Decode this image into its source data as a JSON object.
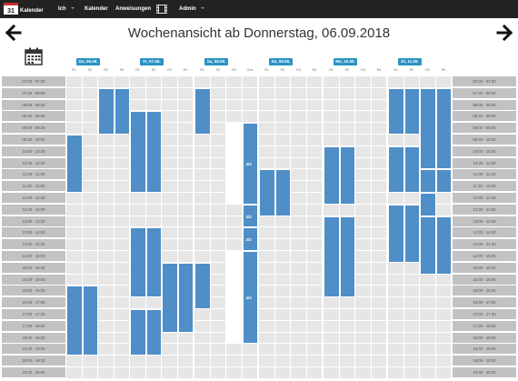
{
  "navbar": {
    "brand_day": "31",
    "brand_label": "Kalender",
    "items": [
      {
        "label": "Ich",
        "dropdown": true
      },
      {
        "label": "Kalender",
        "dropdown": false
      },
      {
        "label": "Anweisungen",
        "dropdown": false
      },
      {
        "label": "",
        "icon": "film-icon",
        "dropdown": false
      },
      {
        "label": "Admin",
        "dropdown": true
      }
    ]
  },
  "page": {
    "title": "Wochenansicht ab Donnerstag, 06.09.2018",
    "prev_icon": "arrow-left-icon",
    "next_icon": "arrow-right-icon",
    "calendar_icon": "calendar-icon"
  },
  "times": [
    "07:00 - 07:30",
    "07:30 - 08:00",
    "08:00 - 08:30",
    "08:30 - 09:00",
    "09:00 - 09:30",
    "09:30 - 10:00",
    "10:00 - 10:30",
    "10:30 - 11:00",
    "11:00 - 11:30",
    "11:30 - 12:00",
    "12:00 - 12:30",
    "12:30 - 13:00",
    "13:00 - 13:30",
    "13:30 - 14:00",
    "14:00 - 14:30",
    "14:30 - 15:00",
    "15:00 - 15:30",
    "15:30 - 16:00",
    "16:00 - 16:30",
    "16:30 - 17:00",
    "17:00 - 17:30",
    "17:30 - 18:00",
    "18:00 - 18:30",
    "18:30 - 19:00",
    "19:00 - 19:30",
    "19:30 - 20:00"
  ],
  "days": [
    {
      "label": "Do, 06.09.",
      "rooms": [
        "R1",
        "R2",
        "R3",
        "R4"
      ]
    },
    {
      "label": "Fr, 07.09.",
      "rooms": [
        "R1",
        "R2",
        "R3",
        "R4"
      ]
    },
    {
      "label": "Sa, 08.09.",
      "rooms": [
        "R1",
        "R2",
        "R3",
        "Ges"
      ]
    },
    {
      "label": "So, 09.09.",
      "rooms": [
        "R1",
        "R2",
        "R3",
        "R4"
      ]
    },
    {
      "label": "Mo, 10.09.",
      "rooms": [
        "R1",
        "R2",
        "R3",
        "R4"
      ]
    },
    {
      "label": "Di, 11.09.",
      "rooms": [
        "R1",
        "R2",
        "R3",
        "R4"
      ]
    }
  ],
  "bookings": [
    {
      "day": 0,
      "room": 2,
      "start": 1,
      "end": 5
    },
    {
      "day": 0,
      "room": 3,
      "start": 1,
      "end": 5
    },
    {
      "day": 0,
      "room": 0,
      "start": 5,
      "end": 10
    },
    {
      "day": 0,
      "room": 0,
      "start": 18,
      "end": 24
    },
    {
      "day": 0,
      "room": 1,
      "start": 18,
      "end": 24
    },
    {
      "day": 1,
      "room": 0,
      "start": 3,
      "end": 10
    },
    {
      "day": 1,
      "room": 1,
      "start": 3,
      "end": 10
    },
    {
      "day": 1,
      "room": 0,
      "start": 13,
      "end": 19
    },
    {
      "day": 1,
      "room": 1,
      "start": 13,
      "end": 19
    },
    {
      "day": 1,
      "room": 2,
      "start": 16,
      "end": 22
    },
    {
      "day": 1,
      "room": 3,
      "start": 16,
      "end": 22
    },
    {
      "day": 1,
      "room": 0,
      "start": 20,
      "end": 24
    },
    {
      "day": 1,
      "room": 1,
      "start": 20,
      "end": 24
    },
    {
      "day": 2,
      "room": 0,
      "start": 1,
      "end": 5
    },
    {
      "day": 2,
      "room": 0,
      "start": 16,
      "end": 20
    },
    {
      "day": 2,
      "room": 3,
      "start": 4,
      "end": 11,
      "label": "4/4"
    },
    {
      "day": 2,
      "room": 3,
      "start": 11,
      "end": 13,
      "label": "2/2"
    },
    {
      "day": 2,
      "room": 3,
      "start": 13,
      "end": 15,
      "label": "2/2"
    },
    {
      "day": 2,
      "room": 3,
      "start": 15,
      "end": 23,
      "label": "4/4"
    },
    {
      "day": 3,
      "room": 0,
      "start": 8,
      "end": 12
    },
    {
      "day": 3,
      "room": 1,
      "start": 8,
      "end": 12
    },
    {
      "day": 4,
      "room": 0,
      "start": 6,
      "end": 11
    },
    {
      "day": 4,
      "room": 1,
      "start": 6,
      "end": 11
    },
    {
      "day": 4,
      "room": 0,
      "start": 12,
      "end": 19
    },
    {
      "day": 4,
      "room": 1,
      "start": 12,
      "end": 19
    },
    {
      "day": 5,
      "room": 0,
      "start": 1,
      "end": 5
    },
    {
      "day": 5,
      "room": 1,
      "start": 1,
      "end": 5
    },
    {
      "day": 5,
      "room": 0,
      "start": 6,
      "end": 10
    },
    {
      "day": 5,
      "room": 1,
      "start": 6,
      "end": 10
    },
    {
      "day": 5,
      "room": 2,
      "start": 1,
      "end": 8
    },
    {
      "day": 5,
      "room": 3,
      "start": 1,
      "end": 8
    },
    {
      "day": 5,
      "room": 2,
      "start": 8,
      "end": 10
    },
    {
      "day": 5,
      "room": 3,
      "start": 8,
      "end": 10
    },
    {
      "day": 5,
      "room": 0,
      "start": 11,
      "end": 16
    },
    {
      "day": 5,
      "room": 1,
      "start": 11,
      "end": 16
    },
    {
      "day": 5,
      "room": 2,
      "start": 10,
      "end": 12
    },
    {
      "day": 5,
      "room": 2,
      "start": 12,
      "end": 17
    },
    {
      "day": 5,
      "room": 3,
      "start": 12,
      "end": 17
    }
  ],
  "colors": {
    "navbar": "#222222",
    "booking": "#4f8ec6",
    "badge": "#2a93c4",
    "time_bg": "#c2c2c2",
    "grid": "#e6e6e6"
  }
}
